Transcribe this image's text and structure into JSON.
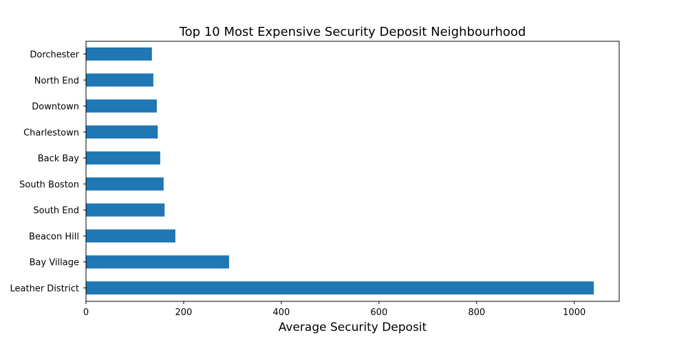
{
  "chart_data": {
    "type": "bar",
    "orientation": "horizontal",
    "title": "Top 10 Most Expensive Security Deposit Neighbourhood",
    "xlabel": "Average Security Deposit",
    "ylabel": "",
    "categories": [
      "Dorchester",
      "North End",
      "Downtown",
      "Charlestown",
      "Back Bay",
      "South Boston",
      "South End",
      "Beacon Hill",
      "Bay Village",
      "Leather District"
    ],
    "values": [
      135,
      138,
      145,
      147,
      152,
      159,
      161,
      183,
      293,
      1040
    ],
    "xlim": [
      0,
      1092
    ],
    "xticks": [
      0,
      200,
      400,
      600,
      800,
      1000
    ],
    "grid": false,
    "bar_color": "#1f77b4"
  }
}
